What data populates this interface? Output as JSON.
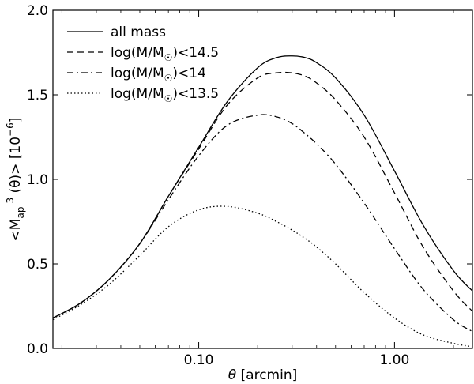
{
  "chart_data": {
    "type": "line",
    "xscale": "log",
    "xlim": [
      0.018,
      2.5
    ],
    "ylim": [
      0.0,
      2.0
    ],
    "xlabel_symbol": "θ",
    "xlabel_text": " [arcmin]",
    "ylabel_parts": {
      "prefix": "<M",
      "subscript": "ap",
      "superscript": "3",
      "suffix": " (θ)>  [10",
      "exp": "−6",
      "close": "]"
    },
    "xticks": [
      {
        "value": 0.1,
        "label": "0.10"
      },
      {
        "value": 1.0,
        "label": "1.00"
      }
    ],
    "yticks": [
      {
        "value": 0.0,
        "label": "0.0"
      },
      {
        "value": 0.5,
        "label": "0.5"
      },
      {
        "value": 1.0,
        "label": "1.0"
      },
      {
        "value": 1.5,
        "label": "1.5"
      },
      {
        "value": 2.0,
        "label": "2.0"
      }
    ],
    "legend_position": "top-left",
    "x": [
      0.018,
      0.025,
      0.035,
      0.05,
      0.07,
      0.1,
      0.14,
      0.2,
      0.25,
      0.3,
      0.35,
      0.4,
      0.5,
      0.7,
      1.0,
      1.4,
      2.0,
      2.5
    ],
    "series": [
      {
        "name": "all mass",
        "label_main": "all mass",
        "label_sub": "",
        "label_tail": "",
        "style": "solid",
        "values": [
          0.18,
          0.27,
          0.41,
          0.62,
          0.9,
          1.19,
          1.46,
          1.66,
          1.72,
          1.73,
          1.72,
          1.69,
          1.6,
          1.38,
          1.05,
          0.73,
          0.46,
          0.34
        ]
      },
      {
        "name": "log(M/M☉)<14.5",
        "label_main": "log(M/M",
        "label_sub": "☉",
        "label_tail": ")<14.5",
        "style": "dashed",
        "values": [
          0.18,
          0.27,
          0.41,
          0.62,
          0.9,
          1.18,
          1.44,
          1.6,
          1.63,
          1.63,
          1.61,
          1.57,
          1.47,
          1.25,
          0.92,
          0.6,
          0.34,
          0.22
        ]
      },
      {
        "name": "log(M/M☉)<14",
        "label_main": "log(M/M",
        "label_sub": "☉",
        "label_tail": ")<14",
        "style": "dashdot",
        "values": [
          0.18,
          0.27,
          0.41,
          0.62,
          0.88,
          1.14,
          1.32,
          1.38,
          1.37,
          1.33,
          1.27,
          1.21,
          1.09,
          0.86,
          0.59,
          0.35,
          0.17,
          0.1
        ]
      },
      {
        "name": "log(M/M☉)<13.5",
        "label_main": "log(M/M",
        "label_sub": "☉",
        "label_tail": ")<13.5",
        "style": "dotted",
        "values": [
          0.17,
          0.26,
          0.38,
          0.55,
          0.72,
          0.82,
          0.84,
          0.8,
          0.75,
          0.7,
          0.65,
          0.6,
          0.5,
          0.33,
          0.18,
          0.08,
          0.03,
          0.01
        ]
      }
    ]
  }
}
